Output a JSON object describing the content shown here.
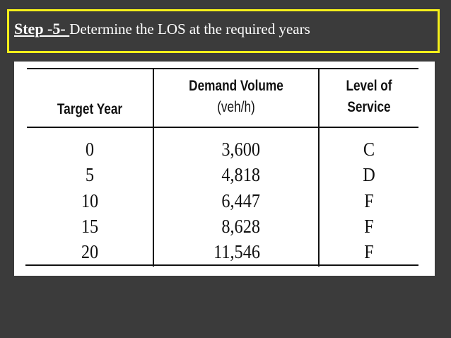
{
  "slide": {
    "step_label": "Step -5- ",
    "description": "Determine the LOS at the required years"
  },
  "table": {
    "headers": {
      "target_year": "Target Year",
      "demand_volume": "Demand Volume",
      "demand_volume_unit": "(veh/h)",
      "level_of_service_line1": "Level of",
      "level_of_service_line2": "Service"
    },
    "rows": [
      {
        "year": "0",
        "volume": "3,600",
        "los": "C"
      },
      {
        "year": "5",
        "volume": "4,818",
        "los": "D"
      },
      {
        "year": "10",
        "volume": "6,447",
        "los": "F"
      },
      {
        "year": "15",
        "volume": "8,628",
        "los": "F"
      },
      {
        "year": "20",
        "volume": "11,546",
        "los": "F"
      }
    ]
  }
}
